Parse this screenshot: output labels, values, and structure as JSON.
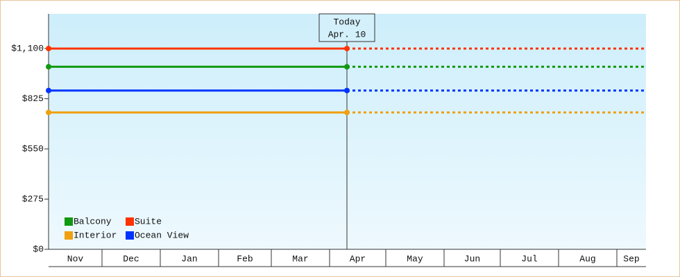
{
  "chart_data": {
    "type": "line",
    "categories": [
      "Nov",
      "Dec",
      "Jan",
      "Feb",
      "Mar",
      "Apr",
      "May",
      "Jun",
      "Jul",
      "Aug",
      "Sep"
    ],
    "series": [
      {
        "name": "Balcony",
        "color": "#119911",
        "value": 1000
      },
      {
        "name": "Suite",
        "color": "#ff3300",
        "value": 1100
      },
      {
        "name": "Interior",
        "color": "#f0a010",
        "value": 750
      },
      {
        "name": "Ocean View",
        "color": "#0033ff",
        "value": 870
      }
    ],
    "annotation": {
      "title": "Today",
      "date": "Apr. 10"
    },
    "ylim": [
      0,
      1290
    ],
    "yticks": [
      {
        "value": 0,
        "label": "$0"
      },
      {
        "value": 275,
        "label": "$275"
      },
      {
        "value": 550,
        "label": "$550"
      },
      {
        "value": 825,
        "label": "$825"
      },
      {
        "value": 1100,
        "label": "$1,100"
      }
    ]
  }
}
